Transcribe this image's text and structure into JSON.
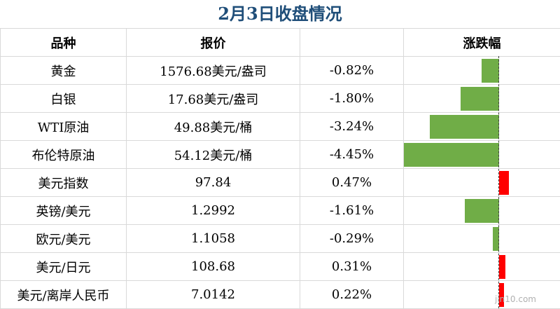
{
  "title": "2月3日收盘情况",
  "headers": [
    "品种",
    "报价",
    "",
    "涨跌幅"
  ],
  "rows": [
    {
      "name": "黄金",
      "price": "1576.68美元/盎司",
      "change": "-0.82%",
      "value": -0.82
    },
    {
      "name": "白银",
      "price": "17.68美元/盎司",
      "change": "-1.80%",
      "value": -1.8
    },
    {
      "name": "WTI原油",
      "price": "49.88美元/桶",
      "change": "-3.24%",
      "value": -3.24
    },
    {
      "name": "布伦特原油",
      "price": "54.12美元/桶",
      "change": "-4.45%",
      "value": -4.45
    },
    {
      "name": "美元指数",
      "price": "97.84",
      "change": "0.47%",
      "value": 0.47
    },
    {
      "name": "英镑/美元",
      "price": "1.2992",
      "change": "-1.61%",
      "value": -1.61
    },
    {
      "name": "欧元/美元",
      "price": "1.1058",
      "change": "-0.29%",
      "value": -0.29
    },
    {
      "name": "美元/日元",
      "price": "108.68",
      "change": "0.31%",
      "value": 0.31
    },
    {
      "name": "美元/离岸人民币",
      "price": "7.0142",
      "change": "0.22%",
      "value": 0.22
    }
  ],
  "colors": {
    "negative": "#70ad47",
    "positive": "#ff0000",
    "title": "#1f4e79"
  },
  "watermark": "jin10.com"
}
